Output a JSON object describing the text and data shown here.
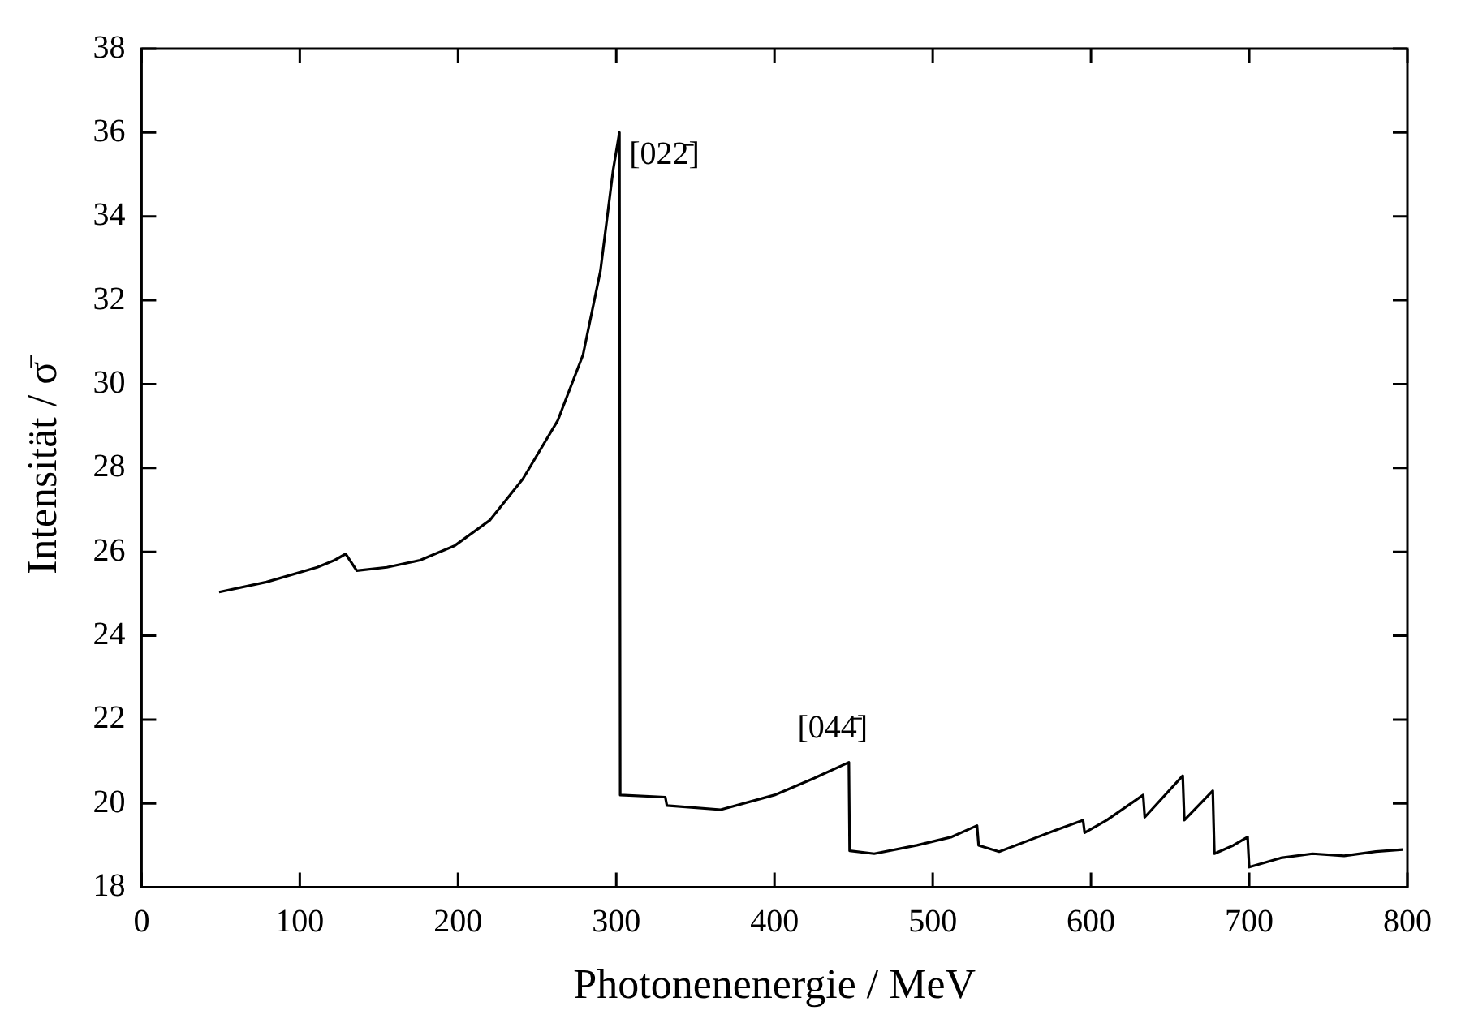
{
  "chart_data": {
    "type": "line",
    "xlabel": "Photonenenergie / MeV",
    "ylabel": "Intensität / σ̄",
    "x": [
      49,
      79,
      111,
      122,
      129,
      136,
      155,
      176,
      198,
      220,
      241,
      263,
      279,
      290,
      298,
      302,
      302.5,
      331,
      332,
      366,
      400,
      425,
      447,
      447.5,
      463,
      490,
      512,
      528,
      529,
      542,
      577,
      595,
      596,
      610,
      633,
      634,
      658,
      659,
      677,
      678,
      690,
      699,
      700,
      720,
      740,
      760,
      780,
      797
    ],
    "values": [
      25.04,
      25.28,
      25.63,
      25.8,
      25.95,
      25.55,
      25.63,
      25.8,
      26.15,
      26.75,
      27.74,
      29.13,
      30.7,
      32.7,
      35.1,
      36.0,
      20.2,
      20.15,
      19.95,
      19.85,
      20.2,
      20.6,
      20.98,
      18.87,
      18.8,
      19.0,
      19.2,
      19.47,
      19.0,
      18.85,
      19.35,
      19.6,
      19.3,
      19.6,
      20.2,
      19.67,
      20.66,
      19.6,
      20.3,
      18.8,
      19.0,
      19.2,
      18.48,
      18.7,
      18.8,
      18.75,
      18.85,
      18.9
    ],
    "color": "#000000",
    "xlim": [
      0,
      800
    ],
    "xticks": [
      0,
      100,
      200,
      300,
      400,
      500,
      600,
      700,
      800
    ],
    "ylim": [
      18,
      38
    ],
    "yticks": [
      18,
      20,
      22,
      24,
      26,
      28,
      30,
      32,
      34,
      36,
      38
    ],
    "grid": false,
    "legend": false,
    "marker": "none",
    "line_style": "solid",
    "annotations": [
      {
        "text": "[022̄]",
        "x": 300,
        "y": 36
      },
      {
        "text": "[044̄]",
        "x": 447,
        "y": 21
      }
    ]
  }
}
